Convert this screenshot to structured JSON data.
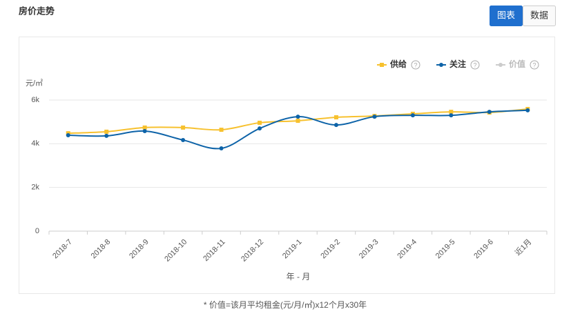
{
  "ui": {
    "buttons": [
      "图表",
      "数据"
    ],
    "active_button": 0,
    "help_icon": "?"
  },
  "chart_data": {
    "type": "line",
    "title": "房价走势",
    "y_label": "元/㎡",
    "x_label": "年 - 月",
    "footnote": "* 价值=该月平均租金(元/月/㎡)x12个月x30年",
    "categories": [
      "2018-7",
      "2018-8",
      "2018-9",
      "2018-10",
      "2018-11",
      "2018-12",
      "2019-1",
      "2019-2",
      "2019-3",
      "2019-4",
      "2019-5",
      "2019-6",
      "近1月"
    ],
    "series": [
      {
        "name": "供给",
        "color": "#f7c12e",
        "marker": "square",
        "visible": true,
        "values": [
          4480,
          4550,
          4740,
          4740,
          4640,
          4960,
          5050,
          5210,
          5270,
          5370,
          5460,
          5430,
          5590
        ]
      },
      {
        "name": "关注",
        "color": "#0d63a8",
        "marker": "circle",
        "visible": true,
        "values": [
          4390,
          4360,
          4580,
          4170,
          3790,
          4700,
          5240,
          4860,
          5240,
          5300,
          5300,
          5460,
          5530
        ]
      },
      {
        "name": "价值",
        "color": "#cccccc",
        "marker": "circle",
        "visible": false,
        "values": [
          null,
          null,
          null,
          null,
          null,
          null,
          null,
          null,
          null,
          null,
          null,
          null,
          null
        ]
      }
    ],
    "ylim": [
      0,
      6000
    ],
    "yticks": [
      0,
      {
        "value": 2000,
        "label": "2k"
      },
      {
        "value": 4000,
        "label": "4k"
      },
      {
        "value": 6000,
        "label": "6k"
      }
    ],
    "grid": true,
    "legend": "top-right"
  }
}
